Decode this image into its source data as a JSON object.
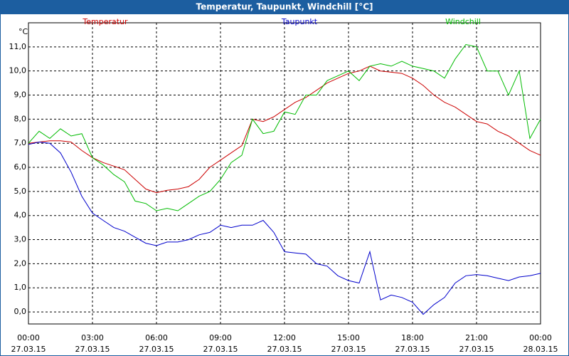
{
  "chart_data": {
    "type": "line",
    "title": "Temperatur, Taupunkt, Windchill [°C]",
    "y_unit": "°C",
    "x": [
      0,
      0.5,
      1,
      1.5,
      2,
      2.5,
      3,
      3.5,
      4,
      4.5,
      5,
      5.5,
      6,
      6.5,
      7,
      7.5,
      8,
      8.5,
      9,
      9.5,
      10,
      10.5,
      11,
      11.5,
      12,
      12.5,
      13,
      13.5,
      14,
      14.5,
      15,
      15.5,
      16,
      16.5,
      17,
      17.5,
      18,
      18.5,
      19,
      19.5,
      20,
      20.5,
      21,
      21.5,
      22,
      22.5,
      23,
      23.5,
      24
    ],
    "series": [
      {
        "name": "Temperatur",
        "color": "#cc0000",
        "values": [
          7.0,
          7.05,
          7.1,
          7.1,
          7.05,
          6.7,
          6.4,
          6.2,
          6.05,
          5.9,
          5.5,
          5.1,
          4.95,
          5.05,
          5.1,
          5.2,
          5.5,
          6.0,
          6.3,
          6.6,
          6.9,
          8.0,
          7.9,
          8.1,
          8.4,
          8.7,
          8.9,
          9.2,
          9.5,
          9.7,
          9.9,
          10.0,
          10.2,
          10.0,
          9.95,
          9.9,
          9.7,
          9.4,
          9.0,
          8.7,
          8.5,
          8.2,
          7.9,
          7.8,
          7.5,
          7.3,
          7.0,
          6.7,
          6.5
        ]
      },
      {
        "name": "Taupunkt",
        "color": "#0000cc",
        "values": [
          6.95,
          7.05,
          7.0,
          6.6,
          5.8,
          4.8,
          4.1,
          3.8,
          3.5,
          3.35,
          3.1,
          2.85,
          2.75,
          2.9,
          2.9,
          3.0,
          3.2,
          3.3,
          3.6,
          3.5,
          3.6,
          3.6,
          3.8,
          3.3,
          2.5,
          2.45,
          2.4,
          2.0,
          1.9,
          1.5,
          1.3,
          1.2,
          2.5,
          0.5,
          0.7,
          0.6,
          0.4,
          -0.1,
          0.3,
          0.6,
          1.2,
          1.5,
          1.55,
          1.5,
          1.4,
          1.3,
          1.45,
          1.5,
          1.6
        ]
      },
      {
        "name": "Windchill",
        "color": "#00bb00",
        "values": [
          7.0,
          7.5,
          7.2,
          7.6,
          7.3,
          7.4,
          6.4,
          6.1,
          5.7,
          5.4,
          4.6,
          4.5,
          4.2,
          4.3,
          4.2,
          4.5,
          4.8,
          5.0,
          5.5,
          6.2,
          6.5,
          8.0,
          7.4,
          7.5,
          8.3,
          8.2,
          9.0,
          9.0,
          9.6,
          9.8,
          10.0,
          9.6,
          10.2,
          10.3,
          10.2,
          10.4,
          10.2,
          10.1,
          10.0,
          9.7,
          10.5,
          11.1,
          11.0,
          10.0,
          10.0,
          9.0,
          10.0,
          7.2,
          8.0
        ]
      }
    ],
    "xlim": [
      0,
      24
    ],
    "ylim": [
      -0.5,
      12
    ],
    "xticks": [
      {
        "value": 0,
        "label": "00:00"
      },
      {
        "value": 3,
        "label": "03:00"
      },
      {
        "value": 6,
        "label": "06:00"
      },
      {
        "value": 9,
        "label": "09:00"
      },
      {
        "value": 12,
        "label": "12:00"
      },
      {
        "value": 15,
        "label": "15:00"
      },
      {
        "value": 18,
        "label": "18:00"
      },
      {
        "value": 21,
        "label": "21:00"
      },
      {
        "value": 24,
        "label": "00:00"
      }
    ],
    "xtick_dates": [
      "27.03.15",
      "27.03.15",
      "27.03.15",
      "27.03.15",
      "27.03.15",
      "27.03.15",
      "27.03.15",
      "27.03.15",
      "28.03.15"
    ],
    "yticks": [
      {
        "value": 0,
        "label": "0,0"
      },
      {
        "value": 1,
        "label": "1,0"
      },
      {
        "value": 2,
        "label": "2,0"
      },
      {
        "value": 3,
        "label": "3,0"
      },
      {
        "value": 4,
        "label": "4,0"
      },
      {
        "value": 5,
        "label": "5,0"
      },
      {
        "value": 6,
        "label": "6,0"
      },
      {
        "value": 7,
        "label": "7,0"
      },
      {
        "value": 8,
        "label": "8,0"
      },
      {
        "value": 9,
        "label": "9,0"
      },
      {
        "value": 10,
        "label": "10,0"
      },
      {
        "value": 11,
        "label": "11,0"
      }
    ],
    "grid": true
  }
}
